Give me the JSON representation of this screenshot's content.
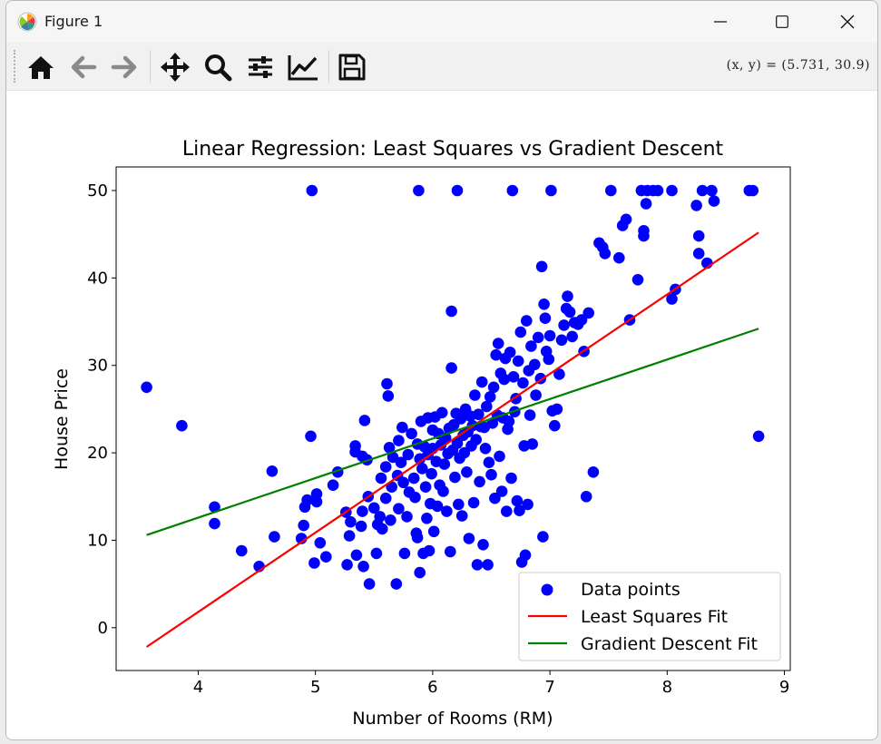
{
  "window": {
    "title": "Figure 1",
    "coords_readout": "(x,  y) = (5.731,  30.9)"
  },
  "colors": {
    "points": "#0000ff",
    "least_squares": "#ff0000",
    "gradient_descent": "#008000",
    "titlebar": "#f6f6f6",
    "toolbar": "#f1f1f1"
  },
  "toolbar": {
    "buttons": [
      {
        "name": "home-icon"
      },
      {
        "name": "back-arrow-icon"
      },
      {
        "name": "forward-arrow-icon"
      },
      {
        "name": "pan-icon"
      },
      {
        "name": "zoom-icon"
      },
      {
        "name": "configure-subplots-icon"
      },
      {
        "name": "edit-axis-icon"
      },
      {
        "name": "save-icon"
      }
    ]
  },
  "chart_data": {
    "type": "scatter",
    "title": "Linear Regression: Least Squares vs Gradient Descent",
    "xlabel": "Number of Rooms (RM)",
    "ylabel": "House Price",
    "xlim": [
      3.3,
      9.05
    ],
    "ylim": [
      -4.9,
      52.7
    ],
    "xticks": [
      4,
      5,
      6,
      7,
      8,
      9
    ],
    "yticks": [
      0,
      10,
      20,
      30,
      40,
      50
    ],
    "xtick_labels": [
      "4",
      "5",
      "6",
      "7",
      "8",
      "9"
    ],
    "ytick_labels": [
      "0",
      "10",
      "20",
      "30",
      "40",
      "50"
    ],
    "grid": false,
    "legend": {
      "placement": "lower-right",
      "entries": [
        "Data points",
        "Least Squares Fit",
        "Gradient Descent Fit"
      ]
    },
    "series": [
      {
        "name": "Data points",
        "kind": "scatter",
        "points": [
          [
            3.56,
            27.5
          ],
          [
            3.86,
            23.1
          ],
          [
            4.14,
            13.8
          ],
          [
            4.14,
            11.9
          ],
          [
            4.37,
            8.8
          ],
          [
            4.52,
            7.0
          ],
          [
            4.63,
            17.9
          ],
          [
            4.65,
            10.4
          ],
          [
            4.88,
            10.2
          ],
          [
            4.9,
            11.7
          ],
          [
            4.91,
            13.8
          ],
          [
            4.93,
            14.6
          ],
          [
            4.96,
            21.9
          ],
          [
            4.97,
            50.0
          ],
          [
            4.99,
            7.4
          ],
          [
            5.01,
            15.3
          ],
          [
            5.01,
            14.4
          ],
          [
            5.04,
            9.7
          ],
          [
            5.09,
            8.1
          ],
          [
            5.15,
            16.3
          ],
          [
            5.19,
            17.8
          ],
          [
            5.26,
            13.2
          ],
          [
            5.27,
            7.2
          ],
          [
            5.29,
            10.5
          ],
          [
            5.3,
            12.1
          ],
          [
            5.34,
            20.1
          ],
          [
            5.34,
            20.8
          ],
          [
            5.35,
            8.3
          ],
          [
            5.39,
            11.6
          ],
          [
            5.4,
            13.3
          ],
          [
            5.4,
            19.6
          ],
          [
            5.41,
            7.0
          ],
          [
            5.42,
            23.7
          ],
          [
            5.44,
            19.2
          ],
          [
            5.45,
            15.0
          ],
          [
            5.46,
            5.0
          ],
          [
            5.5,
            13.7
          ],
          [
            5.52,
            8.5
          ],
          [
            5.53,
            11.8
          ],
          [
            5.55,
            12.7
          ],
          [
            5.56,
            17.1
          ],
          [
            5.57,
            11.3
          ],
          [
            5.6,
            14.8
          ],
          [
            5.6,
            18.4
          ],
          [
            5.61,
            27.9
          ],
          [
            5.62,
            26.5
          ],
          [
            5.63,
            20.6
          ],
          [
            5.64,
            12.3
          ],
          [
            5.65,
            16.1
          ],
          [
            5.66,
            19.5
          ],
          [
            5.69,
            5.0
          ],
          [
            5.7,
            17.4
          ],
          [
            5.71,
            21.4
          ],
          [
            5.71,
            13.6
          ],
          [
            5.73,
            18.9
          ],
          [
            5.74,
            22.9
          ],
          [
            5.75,
            16.6
          ],
          [
            5.76,
            8.5
          ],
          [
            5.78,
            12.7
          ],
          [
            5.79,
            19.8
          ],
          [
            5.8,
            15.5
          ],
          [
            5.82,
            22.2
          ],
          [
            5.84,
            17.1
          ],
          [
            5.85,
            14.9
          ],
          [
            5.86,
            10.8
          ],
          [
            5.87,
            10.3
          ],
          [
            5.87,
            21.0
          ],
          [
            5.88,
            50.0
          ],
          [
            5.89,
            6.3
          ],
          [
            5.89,
            19.3
          ],
          [
            5.9,
            23.6
          ],
          [
            5.91,
            18.2
          ],
          [
            5.92,
            8.5
          ],
          [
            5.93,
            20.7
          ],
          [
            5.94,
            16.1
          ],
          [
            5.95,
            12.5
          ],
          [
            5.96,
            24.0
          ],
          [
            5.96,
            19.8
          ],
          [
            5.97,
            8.8
          ],
          [
            5.98,
            14.2
          ],
          [
            5.99,
            17.6
          ],
          [
            6.0,
            20.5
          ],
          [
            6.0,
            22.6
          ],
          [
            6.01,
            11.0
          ],
          [
            6.02,
            24.1
          ],
          [
            6.03,
            19.0
          ],
          [
            6.04,
            13.9
          ],
          [
            6.05,
            22.2
          ],
          [
            6.06,
            16.3
          ],
          [
            6.07,
            20.9
          ],
          [
            6.08,
            24.6
          ],
          [
            6.09,
            15.6
          ],
          [
            6.1,
            18.7
          ],
          [
            6.11,
            21.7
          ],
          [
            6.12,
            13.3
          ],
          [
            6.13,
            19.9
          ],
          [
            6.14,
            22.8
          ],
          [
            6.15,
            8.7
          ],
          [
            6.16,
            29.7
          ],
          [
            6.16,
            36.2
          ],
          [
            6.17,
            20.3
          ],
          [
            6.18,
            23.2
          ],
          [
            6.19,
            17.2
          ],
          [
            6.2,
            24.5
          ],
          [
            6.21,
            50.0
          ],
          [
            6.21,
            21.1
          ],
          [
            6.22,
            14.1
          ],
          [
            6.23,
            19.4
          ],
          [
            6.24,
            23.9
          ],
          [
            6.25,
            12.8
          ],
          [
            6.26,
            22.0
          ],
          [
            6.27,
            20.0
          ],
          [
            6.28,
            25.0
          ],
          [
            6.29,
            17.8
          ],
          [
            6.3,
            22.4
          ],
          [
            6.31,
            10.2
          ],
          [
            6.32,
            24.2
          ],
          [
            6.33,
            20.8
          ],
          [
            6.34,
            23.1
          ],
          [
            6.35,
            14.3
          ],
          [
            6.36,
            26.6
          ],
          [
            6.37,
            21.5
          ],
          [
            6.38,
            7.2
          ],
          [
            6.39,
            24.4
          ],
          [
            6.4,
            16.7
          ],
          [
            6.41,
            23.0
          ],
          [
            6.42,
            28.1
          ],
          [
            6.43,
            9.5
          ],
          [
            6.44,
            22.9
          ],
          [
            6.45,
            20.5
          ],
          [
            6.46,
            25.3
          ],
          [
            6.47,
            7.2
          ],
          [
            6.48,
            18.9
          ],
          [
            6.49,
            26.4
          ],
          [
            6.5,
            17.5
          ],
          [
            6.51,
            23.4
          ],
          [
            6.52,
            27.5
          ],
          [
            6.53,
            14.8
          ],
          [
            6.54,
            31.2
          ],
          [
            6.55,
            24.3
          ],
          [
            6.56,
            32.5
          ],
          [
            6.57,
            19.6
          ],
          [
            6.58,
            29.1
          ],
          [
            6.59,
            15.6
          ],
          [
            6.6,
            24.0
          ],
          [
            6.61,
            28.4
          ],
          [
            6.62,
            30.8
          ],
          [
            6.63,
            13.3
          ],
          [
            6.64,
            22.7
          ],
          [
            6.65,
            23.6
          ],
          [
            6.66,
            31.5
          ],
          [
            6.67,
            17.1
          ],
          [
            6.68,
            50.0
          ],
          [
            6.69,
            28.7
          ],
          [
            6.7,
            24.7
          ],
          [
            6.71,
            26.2
          ],
          [
            6.72,
            14.5
          ],
          [
            6.73,
            30.5
          ],
          [
            6.74,
            13.4
          ],
          [
            6.75,
            33.8
          ],
          [
            6.76,
            7.5
          ],
          [
            6.77,
            28.0
          ],
          [
            6.78,
            20.8
          ],
          [
            6.79,
            8.3
          ],
          [
            6.8,
            35.1
          ],
          [
            6.81,
            14.1
          ],
          [
            6.82,
            29.4
          ],
          [
            6.83,
            24.3
          ],
          [
            6.84,
            32.2
          ],
          [
            6.85,
            21.0
          ],
          [
            6.87,
            30.1
          ],
          [
            6.88,
            26.6
          ],
          [
            6.9,
            33.2
          ],
          [
            6.92,
            28.5
          ],
          [
            6.93,
            41.3
          ],
          [
            6.94,
            10.4
          ],
          [
            6.95,
            37.0
          ],
          [
            6.96,
            35.4
          ],
          [
            6.97,
            31.6
          ],
          [
            6.99,
            30.7
          ],
          [
            7.0,
            33.4
          ],
          [
            7.01,
            50.0
          ],
          [
            7.02,
            24.8
          ],
          [
            7.04,
            23.1
          ],
          [
            7.06,
            25.0
          ],
          [
            7.08,
            29.0
          ],
          [
            7.1,
            32.9
          ],
          [
            7.12,
            34.6
          ],
          [
            7.14,
            36.5
          ],
          [
            7.15,
            37.9
          ],
          [
            7.17,
            36.1
          ],
          [
            7.19,
            33.3
          ],
          [
            7.21,
            34.9
          ],
          [
            7.24,
            34.7
          ],
          [
            7.27,
            35.2
          ],
          [
            7.29,
            31.6
          ],
          [
            7.31,
            15.0
          ],
          [
            7.33,
            36.0
          ],
          [
            7.37,
            17.8
          ],
          [
            7.42,
            44.0
          ],
          [
            7.45,
            43.5
          ],
          [
            7.47,
            42.8
          ],
          [
            7.52,
            50.0
          ],
          [
            7.59,
            42.3
          ],
          [
            7.62,
            46.0
          ],
          [
            7.65,
            46.7
          ],
          [
            7.68,
            35.2
          ],
          [
            7.75,
            39.8
          ],
          [
            7.78,
            50.0
          ],
          [
            7.8,
            44.8
          ],
          [
            7.8,
            45.4
          ],
          [
            7.82,
            48.5
          ],
          [
            7.83,
            50.0
          ],
          [
            7.88,
            50.0
          ],
          [
            7.92,
            50.0
          ],
          [
            8.04,
            50.0
          ],
          [
            8.04,
            37.6
          ],
          [
            8.07,
            38.7
          ],
          [
            8.25,
            48.3
          ],
          [
            8.27,
            42.8
          ],
          [
            8.27,
            44.8
          ],
          [
            8.3,
            50.0
          ],
          [
            8.34,
            41.7
          ],
          [
            8.38,
            50.0
          ],
          [
            8.4,
            48.8
          ],
          [
            8.7,
            50.0
          ],
          [
            8.73,
            50.0
          ],
          [
            8.78,
            21.9
          ]
        ]
      },
      {
        "name": "Least Squares Fit",
        "kind": "line",
        "x": [
          3.56,
          8.78
        ],
        "y": [
          -2.2,
          45.2
        ]
      },
      {
        "name": "Gradient Descent Fit",
        "kind": "line",
        "x": [
          3.56,
          8.78
        ],
        "y": [
          10.6,
          34.2
        ]
      }
    ]
  }
}
